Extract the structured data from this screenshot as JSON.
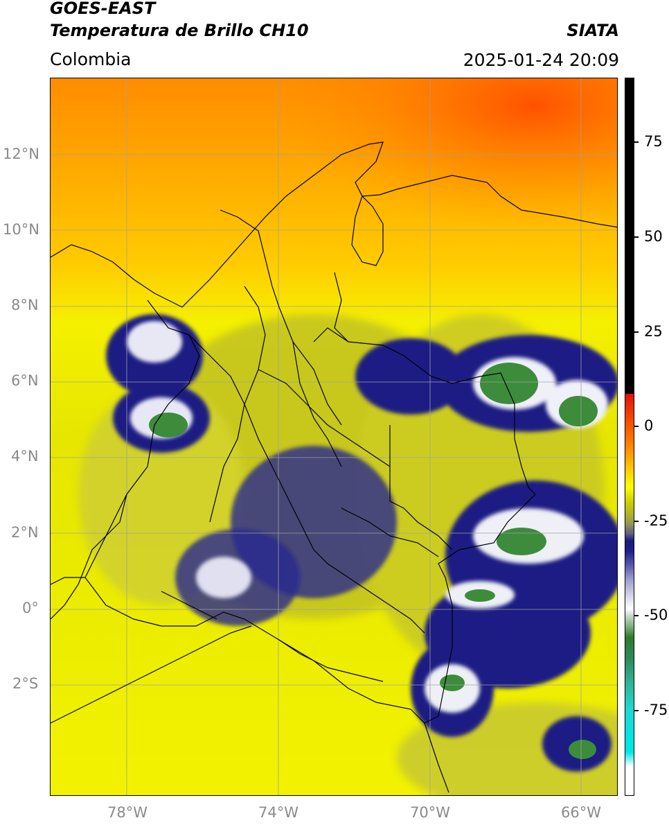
{
  "header": {
    "satellite": "GOES-EAST",
    "product": "Temperatura de Brillo CH10",
    "region": "Colombia",
    "agency": "SIATA",
    "datetime": "2025-01-24 20:09"
  },
  "map": {
    "lat_ticks": [
      "12°N",
      "10°N",
      "8°N",
      "6°N",
      "4°N",
      "2°N",
      "0°",
      "2°S"
    ],
    "lon_ticks": [
      "78°W",
      "74°W",
      "70°W",
      "66°W"
    ],
    "colors": {
      "warm": "#ff6000",
      "yellow": "#ffff00",
      "olive": "#b8b820",
      "navy": "#1a1a7a",
      "green": "#3c8c3c"
    }
  },
  "colorbar": {
    "ticks": [
      "75",
      "50",
      "25",
      "0",
      "-25",
      "-50",
      "-75"
    ],
    "tick_values": [
      75,
      50,
      25,
      0,
      -25,
      -50,
      -75
    ]
  }
}
